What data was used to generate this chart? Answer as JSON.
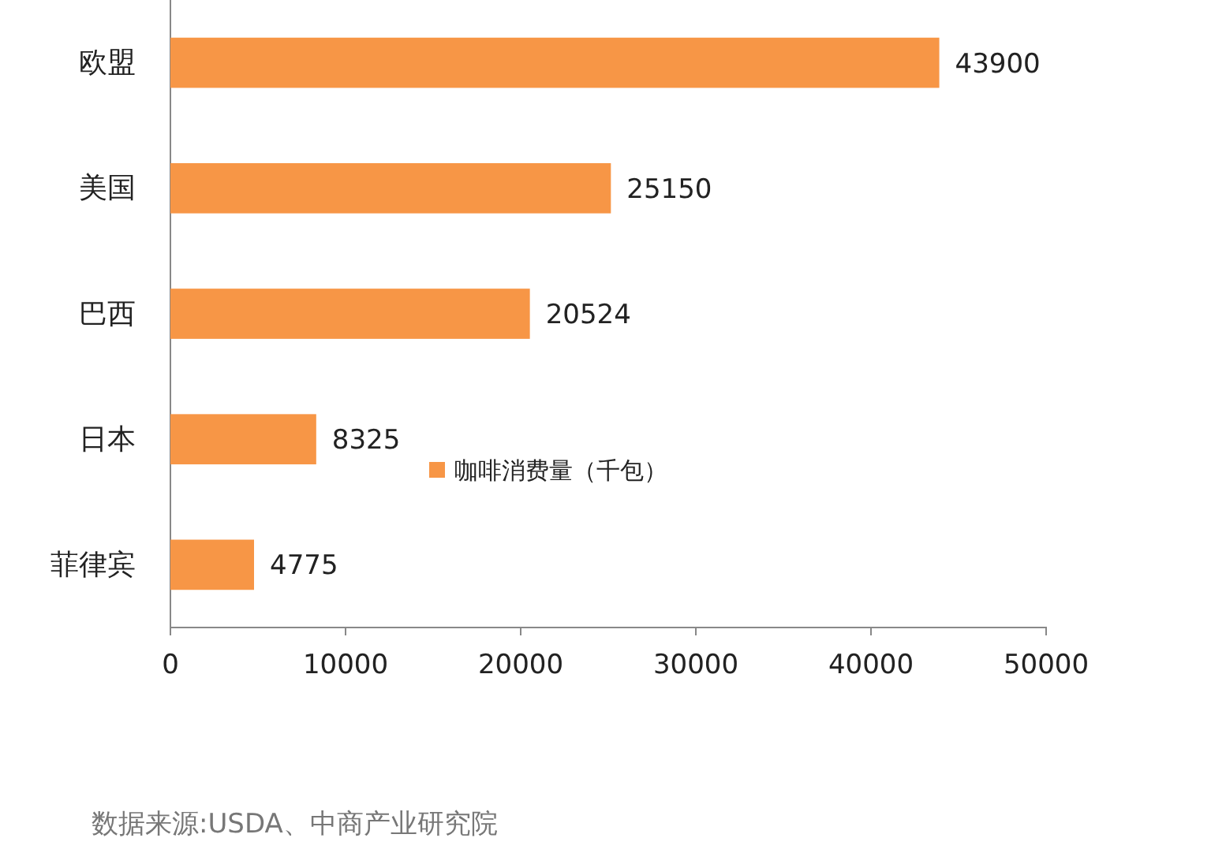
{
  "chart_data": {
    "type": "bar",
    "orientation": "horizontal",
    "categories": [
      "欧盟",
      "美国",
      "巴西",
      "日本",
      "菲律宾"
    ],
    "series": [
      {
        "name": "咖啡消费量（千包）",
        "color": "#f79646",
        "values": [
          43900,
          25150,
          20524,
          8325,
          4775
        ]
      }
    ],
    "xlim": [
      0,
      50000
    ],
    "xticks": [
      0,
      10000,
      20000,
      30000,
      40000,
      50000
    ],
    "data_labels": true,
    "grid": false,
    "legend": "bottom",
    "annotations": [
      "数据来源:USDA、中商产业研究院"
    ]
  }
}
